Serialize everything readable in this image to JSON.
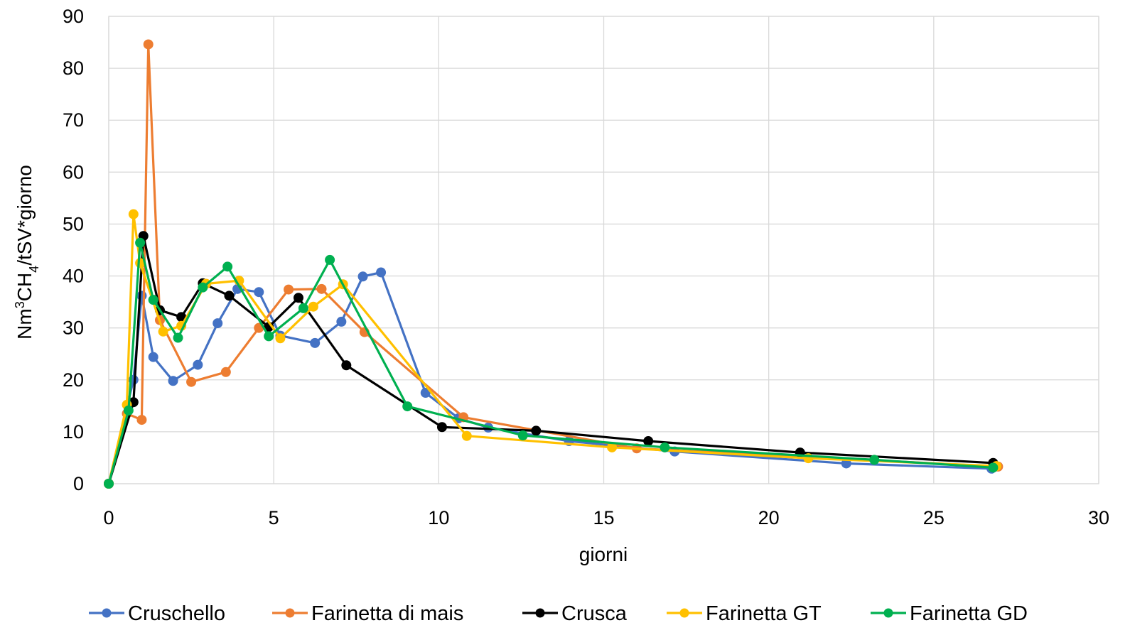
{
  "chart_data": {
    "type": "line",
    "title": "",
    "xlabel": "giorni",
    "ylabel": {
      "prefix": "Nm",
      "sup": "3",
      "mid": "CH",
      "sub": "4",
      "suffix": "/tSV*giorno"
    },
    "xlim": [
      0,
      30
    ],
    "ylim": [
      0,
      90
    ],
    "xticks": [
      "0",
      "5",
      "10",
      "15",
      "20",
      "25",
      "30"
    ],
    "yticks": [
      "0",
      "10",
      "20",
      "30",
      "40",
      "50",
      "60",
      "70",
      "80",
      "90"
    ],
    "grid": true,
    "legend_position": "bottom",
    "series": [
      {
        "name": "Cruschello",
        "color": "#4472C4",
        "x": [
          0,
          0.75,
          1.0,
          1.35,
          1.95,
          2.7,
          3.3,
          3.9,
          4.55,
          5.2,
          6.25,
          7.05,
          7.7,
          8.25,
          9.6,
          10.6,
          11.5,
          13.95,
          17.15,
          22.35,
          26.75
        ],
        "y": [
          0,
          20,
          36.2,
          24.4,
          19.8,
          22.9,
          30.9,
          37.5,
          36.9,
          28.5,
          27.1,
          31.2,
          39.9,
          40.7,
          17.5,
          12.6,
          10.8,
          8.2,
          6.2,
          3.9,
          2.9
        ]
      },
      {
        "name": "Farinetta di mais",
        "color": "#ED7D31",
        "x": [
          0,
          0.55,
          1.0,
          1.2,
          1.55,
          2.5,
          3.55,
          4.55,
          5.45,
          6.45,
          7.75,
          10.75,
          16.0,
          26.95
        ],
        "y": [
          0,
          13.5,
          12.3,
          84.6,
          31.5,
          19.6,
          21.5,
          30.0,
          37.4,
          37.5,
          29.2,
          12.8,
          6.8,
          3.3
        ]
      },
      {
        "name": "Crusca",
        "color": "#000000",
        "x": [
          0,
          0.75,
          1.05,
          1.55,
          2.2,
          2.85,
          3.65,
          4.85,
          5.75,
          7.2,
          10.1,
          12.95,
          16.35,
          20.95,
          26.8
        ],
        "y": [
          0,
          15.7,
          47.7,
          33.4,
          32.1,
          38.6,
          36.2,
          30.2,
          35.8,
          22.8,
          10.9,
          10.2,
          8.2,
          6.0,
          4.0
        ]
      },
      {
        "name": "Farinetta GT",
        "color": "#FFC000",
        "x": [
          0,
          0.55,
          0.75,
          0.95,
          1.65,
          2.2,
          2.95,
          3.95,
          5.2,
          6.2,
          7.1,
          10.85,
          15.25,
          21.2,
          26.9
        ],
        "y": [
          0,
          15.2,
          51.9,
          42.5,
          29.3,
          30.4,
          38.5,
          39.1,
          28.0,
          34.1,
          38.4,
          9.2,
          7.0,
          4.9,
          3.4
        ]
      },
      {
        "name": "Farinetta GD",
        "color": "#00B050",
        "x": [
          0,
          0.6,
          0.95,
          1.35,
          2.1,
          2.85,
          3.6,
          4.85,
          5.9,
          6.7,
          9.05,
          12.55,
          16.85,
          23.2,
          26.8
        ],
        "y": [
          0,
          14.1,
          46.4,
          35.4,
          28.1,
          37.8,
          41.8,
          28.4,
          33.8,
          43.1,
          14.9,
          9.3,
          7.0,
          4.6,
          3.1
        ]
      }
    ]
  }
}
